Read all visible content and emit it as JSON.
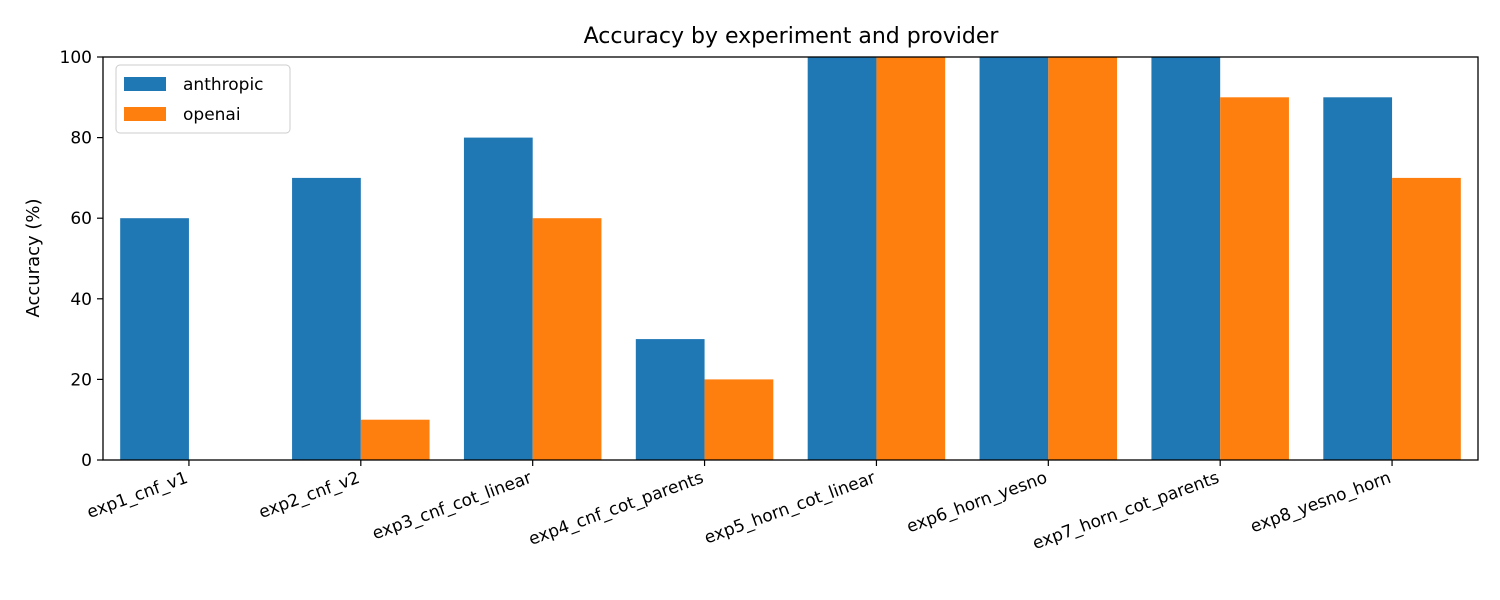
{
  "chart_data": {
    "type": "bar",
    "title": "Accuracy by experiment and provider",
    "xlabel": "",
    "ylabel": "Accuracy (%)",
    "ylim": [
      0,
      100
    ],
    "yticks": [
      0,
      20,
      40,
      60,
      80,
      100
    ],
    "categories": [
      "exp1_cnf_v1",
      "exp2_cnf_v2",
      "exp3_cnf_cot_linear",
      "exp4_cnf_cot_parents",
      "exp5_horn_cot_linear",
      "exp6_horn_yesno",
      "exp7_horn_cot_parents",
      "exp8_yesno_horn"
    ],
    "series": [
      {
        "name": "anthropic",
        "color": "#1f77b4",
        "values": [
          60,
          70,
          80,
          30,
          100,
          100,
          100,
          90
        ]
      },
      {
        "name": "openai",
        "color": "#ff7f0e",
        "values": [
          0,
          10,
          60,
          20,
          100,
          100,
          90,
          70
        ]
      }
    ],
    "legend_position": "top-left",
    "grid": false
  }
}
